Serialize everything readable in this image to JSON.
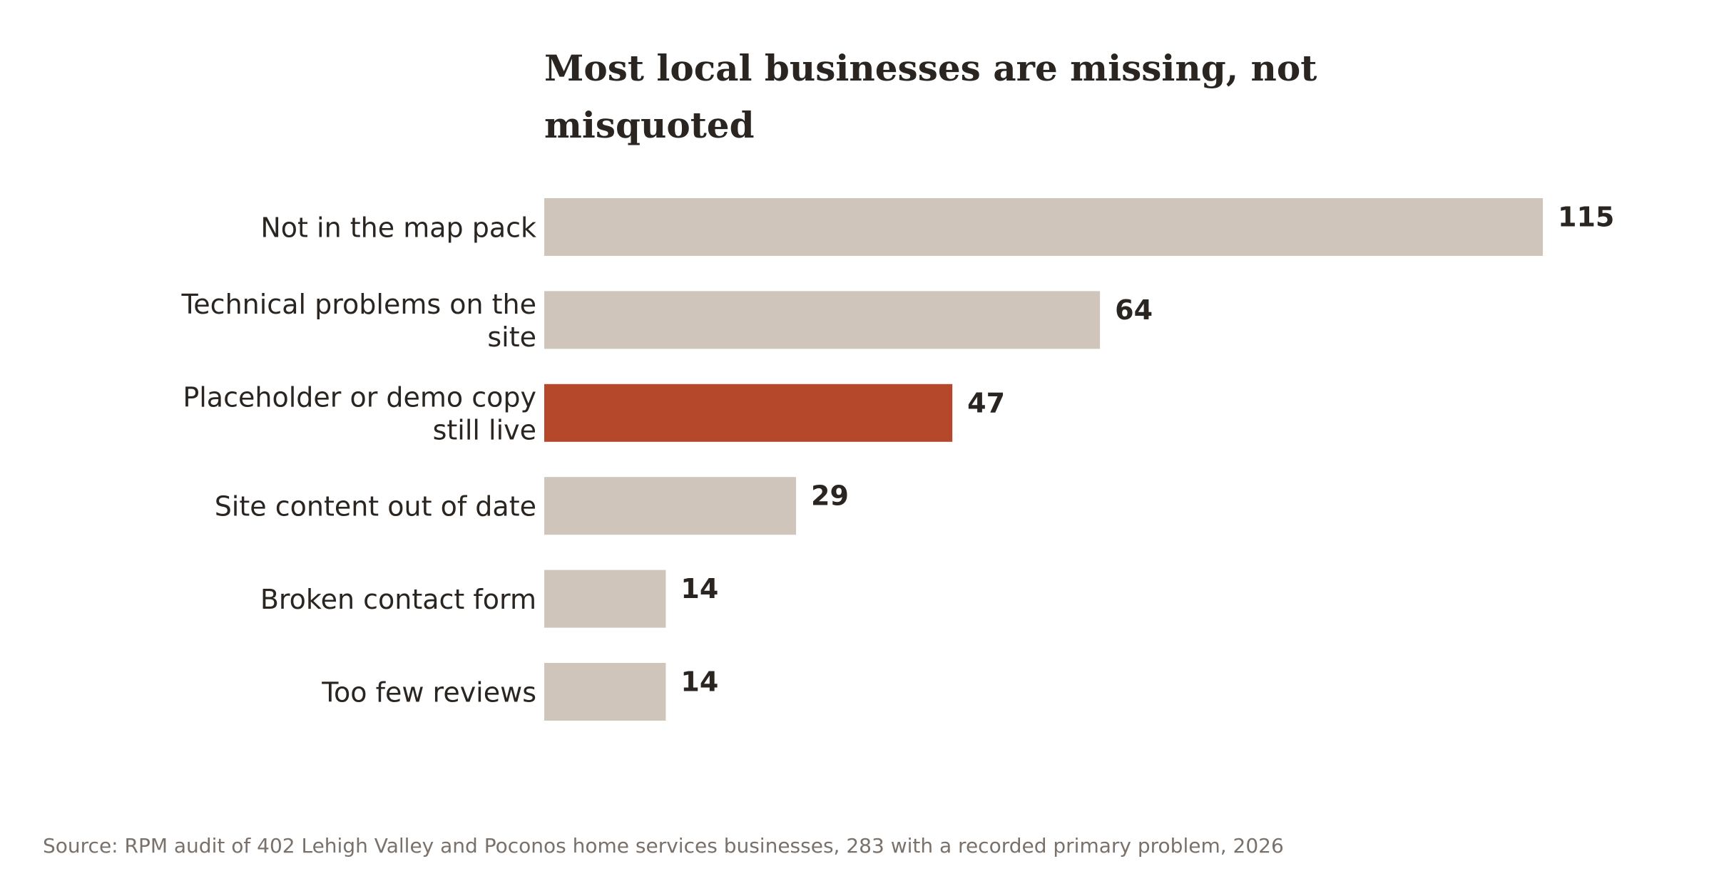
{
  "chart_data": {
    "type": "bar",
    "orientation": "horizontal",
    "title": "Most local businesses are missing, not misquoted",
    "title_lines": [
      "Most local businesses are missing, not",
      "misquoted"
    ],
    "categories": [
      "Not in the map pack",
      "Technical problems on the site",
      "Placeholder or demo copy still live",
      "Site content out of date",
      "Broken contact form",
      "Too few reviews"
    ],
    "category_lines": [
      [
        "Not in the map pack"
      ],
      [
        "Technical problems on the",
        "site"
      ],
      [
        "Placeholder or demo copy",
        "still live"
      ],
      [
        "Site content out of date"
      ],
      [
        "Broken contact form"
      ],
      [
        "Too few reviews"
      ]
    ],
    "values": [
      115,
      64,
      47,
      29,
      14,
      14
    ],
    "highlight_index": 2,
    "colors": {
      "bar": "#cfc5ba",
      "highlight": "#b5472a",
      "text": "#2a2520",
      "source": "#7a716a"
    },
    "xlim": [
      0,
      115
    ],
    "grid": false,
    "legend": "none",
    "source": "Source: RPM audit of 402 Lehigh Valley and Poconos home services businesses, 283 with a recorded primary problem, 2026"
  }
}
